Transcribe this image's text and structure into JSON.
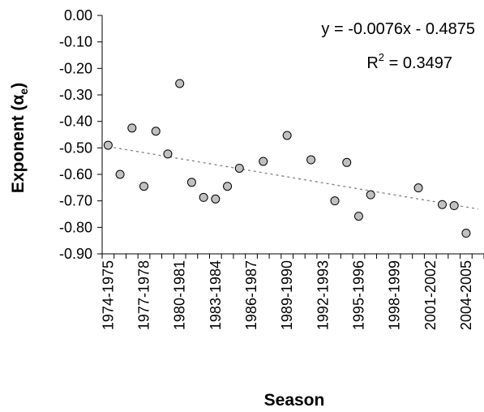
{
  "chart_data": {
    "type": "scatter",
    "xlabel": "Season",
    "ylabel": {
      "main": "Exponent (α",
      "sub": "e",
      "close": ")"
    },
    "ylim": [
      -0.9,
      0.0
    ],
    "y_ticks": [
      0.0,
      -0.1,
      -0.2,
      -0.3,
      -0.4,
      -0.5,
      -0.6,
      -0.7,
      -0.8,
      -0.9
    ],
    "y_tick_labels": [
      "0.00",
      "-0.10",
      "-0.20",
      "-0.30",
      "-0.40",
      "-0.50",
      "-0.60",
      "-0.70",
      "-0.80",
      "-0.90"
    ],
    "x_tick_labels": [
      "1974-1975",
      "1977-1978",
      "1980-1981",
      "1983-1984",
      "1986-1987",
      "1989-1990",
      "1992-1993",
      "1995-1996",
      "1998-1999",
      "2001-2002",
      "2004-2005"
    ],
    "x_categories": [
      "1974-1975",
      "1975-1976",
      "1976-1977",
      "1977-1978",
      "1978-1979",
      "1979-1980",
      "1980-1981",
      "1981-1982",
      "1982-1983",
      "1983-1984",
      "1984-1985",
      "1985-1986",
      "1986-1987",
      "1987-1988",
      "1988-1989",
      "1989-1990",
      "1990-1991",
      "1991-1992",
      "1992-1993",
      "1993-1994",
      "1994-1995",
      "1995-1996",
      "1996-1997",
      "1997-1998",
      "1998-1999",
      "1999-2000",
      "2000-2001",
      "2001-2002",
      "2002-2003",
      "2003-2004",
      "2004-2005",
      "2005-2006"
    ],
    "grid": false,
    "legend": "none",
    "series": [
      {
        "points": [
          {
            "x": "1974-1975",
            "y": -0.49
          },
          {
            "x": "1975-1976",
            "y": -0.6
          },
          {
            "x": "1976-1977",
            "y": -0.425
          },
          {
            "x": "1977-1978",
            "y": -0.645
          },
          {
            "x": "1978-1979",
            "y": -0.437
          },
          {
            "x": "1979-1980",
            "y": -0.523
          },
          {
            "x": "1980-1981",
            "y": -0.257
          },
          {
            "x": "1981-1982",
            "y": -0.63
          },
          {
            "x": "1982-1983",
            "y": -0.687
          },
          {
            "x": "1983-1984",
            "y": -0.693
          },
          {
            "x": "1984-1985",
            "y": -0.645
          },
          {
            "x": "1985-1986",
            "y": -0.577
          },
          {
            "x": "1987-1988",
            "y": -0.551
          },
          {
            "x": "1989-1990",
            "y": -0.453
          },
          {
            "x": "1991-1992",
            "y": -0.545
          },
          {
            "x": "1993-1994",
            "y": -0.7
          },
          {
            "x": "1994-1995",
            "y": -0.555
          },
          {
            "x": "1995-1996",
            "y": -0.758
          },
          {
            "x": "1996-1997",
            "y": -0.677
          },
          {
            "x": "2000-2001",
            "y": -0.651
          },
          {
            "x": "2002-2003",
            "y": -0.714
          },
          {
            "x": "2003-2004",
            "y": -0.718
          },
          {
            "x": "2004-2005",
            "y": -0.822
          }
        ]
      }
    ],
    "trendline": {
      "slope": -0.0076,
      "intercept": -0.4875,
      "style": "dotted"
    },
    "annotations": {
      "equation": "y = -0.0076x - 0.4875",
      "r2_label": "R",
      "r2_sup": "2",
      "r2_value": " = 0.3497"
    },
    "colors": {
      "marker_fill": "#c0c0c0",
      "marker_stroke": "#000000",
      "trend": "#808080",
      "axis": "#000000"
    }
  }
}
